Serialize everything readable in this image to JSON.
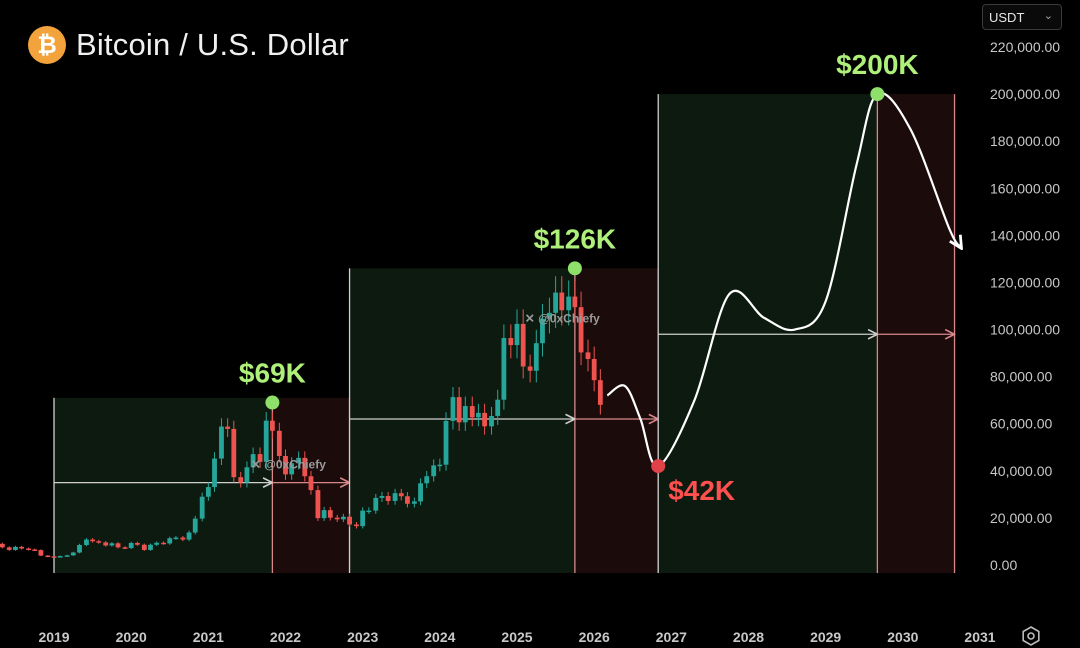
{
  "header": {
    "title": "Bitcoin / U.S. Dollar",
    "icon": "bitcoin-logo-icon",
    "icon_glyph": "₿"
  },
  "currency_selector": {
    "value": "USDT",
    "chevron": "⌄"
  },
  "watermark": "@0xChiefy",
  "colors": {
    "up": "#26a69a",
    "down": "#ef5350",
    "green_zone": "#0d1a0f",
    "red_zone": "#1c0b0b",
    "peak": "#8ee06a",
    "bottom": "#e0424a",
    "label_green": "#aef07a",
    "label_red": "#ff4f4f"
  },
  "chart_data": {
    "type": "candlestick",
    "y_ticks": [
      "220,000.00",
      "200,000.00",
      "180,000.00",
      "160,000.00",
      "140,000.00",
      "120,000.00",
      "100,000.00",
      "80,000.00",
      "60,000.00",
      "40,000.00",
      "20,000.00",
      "0.00"
    ],
    "ylim": [
      0,
      220000
    ],
    "x_ticks": [
      "2019",
      "2020",
      "2021",
      "2022",
      "2023",
      "2024",
      "2025",
      "2026",
      "2027",
      "2028",
      "2029",
      "2030",
      "2031"
    ],
    "xlim": [
      2018.3,
      2031
    ],
    "candles": [
      {
        "t": 2018.33,
        "o": 9000,
        "c": 7500
      },
      {
        "t": 2018.42,
        "o": 7500,
        "c": 6400
      },
      {
        "t": 2018.5,
        "o": 6400,
        "c": 7700
      },
      {
        "t": 2018.58,
        "o": 7700,
        "c": 7000
      },
      {
        "t": 2018.67,
        "o": 7000,
        "c": 6600
      },
      {
        "t": 2018.75,
        "o": 6600,
        "c": 6300
      },
      {
        "t": 2018.83,
        "o": 6300,
        "c": 4000
      },
      {
        "t": 2018.92,
        "o": 4000,
        "c": 3700
      },
      {
        "t": 2019.0,
        "o": 3700,
        "c": 3400
      },
      {
        "t": 2019.08,
        "o": 3400,
        "c": 3800
      },
      {
        "t": 2019.17,
        "o": 3800,
        "c": 4100
      },
      {
        "t": 2019.25,
        "o": 4100,
        "c": 5300
      },
      {
        "t": 2019.33,
        "o": 5300,
        "c": 8500
      },
      {
        "t": 2019.42,
        "o": 8500,
        "c": 10800
      },
      {
        "t": 2019.5,
        "o": 10800,
        "c": 10100
      },
      {
        "t": 2019.58,
        "o": 10100,
        "c": 9600
      },
      {
        "t": 2019.67,
        "o": 9600,
        "c": 8300
      },
      {
        "t": 2019.75,
        "o": 8300,
        "c": 9200
      },
      {
        "t": 2019.83,
        "o": 9200,
        "c": 7500
      },
      {
        "t": 2019.92,
        "o": 7500,
        "c": 7200
      },
      {
        "t": 2020.0,
        "o": 7200,
        "c": 9350
      },
      {
        "t": 2020.08,
        "o": 9350,
        "c": 8600
      },
      {
        "t": 2020.17,
        "o": 8600,
        "c": 6400
      },
      {
        "t": 2020.25,
        "o": 6400,
        "c": 8600
      },
      {
        "t": 2020.33,
        "o": 8600,
        "c": 9450
      },
      {
        "t": 2020.42,
        "o": 9450,
        "c": 9150
      },
      {
        "t": 2020.5,
        "o": 9150,
        "c": 11350
      },
      {
        "t": 2020.58,
        "o": 11350,
        "c": 11650
      },
      {
        "t": 2020.67,
        "o": 11650,
        "c": 10800
      },
      {
        "t": 2020.75,
        "o": 10800,
        "c": 13800
      },
      {
        "t": 2020.83,
        "o": 13800,
        "c": 19700
      },
      {
        "t": 2020.92,
        "o": 19700,
        "c": 29000
      },
      {
        "t": 2021.0,
        "o": 29000,
        "c": 33100
      },
      {
        "t": 2021.08,
        "o": 33100,
        "c": 45200
      },
      {
        "t": 2021.17,
        "o": 45200,
        "c": 58800
      },
      {
        "t": 2021.25,
        "o": 58800,
        "c": 57800
      },
      {
        "t": 2021.33,
        "o": 57800,
        "c": 37300
      },
      {
        "t": 2021.42,
        "o": 37300,
        "c": 35000
      },
      {
        "t": 2021.5,
        "o": 35000,
        "c": 41500
      },
      {
        "t": 2021.58,
        "o": 41500,
        "c": 47100
      },
      {
        "t": 2021.67,
        "o": 47100,
        "c": 43800
      },
      {
        "t": 2021.75,
        "o": 43800,
        "c": 61300
      },
      {
        "t": 2021.83,
        "o": 61300,
        "c": 57000
      },
      {
        "t": 2021.92,
        "o": 57000,
        "c": 46300
      },
      {
        "t": 2022.0,
        "o": 46300,
        "c": 38500
      },
      {
        "t": 2022.08,
        "o": 38500,
        "c": 43200
      },
      {
        "t": 2022.17,
        "o": 43200,
        "c": 45500
      },
      {
        "t": 2022.25,
        "o": 45500,
        "c": 37700
      },
      {
        "t": 2022.33,
        "o": 37700,
        "c": 31800
      },
      {
        "t": 2022.42,
        "o": 31800,
        "c": 19900
      },
      {
        "t": 2022.5,
        "o": 19900,
        "c": 23300
      },
      {
        "t": 2022.58,
        "o": 23300,
        "c": 20100
      },
      {
        "t": 2022.67,
        "o": 20100,
        "c": 19400
      },
      {
        "t": 2022.75,
        "o": 19400,
        "c": 20500
      },
      {
        "t": 2022.83,
        "o": 20500,
        "c": 17200
      },
      {
        "t": 2022.92,
        "o": 17200,
        "c": 16500
      },
      {
        "t": 2023.0,
        "o": 16500,
        "c": 23100
      },
      {
        "t": 2023.08,
        "o": 23100,
        "c": 23100
      },
      {
        "t": 2023.17,
        "o": 23100,
        "c": 28500
      },
      {
        "t": 2023.25,
        "o": 28500,
        "c": 29300
      },
      {
        "t": 2023.33,
        "o": 29300,
        "c": 27200
      },
      {
        "t": 2023.42,
        "o": 27200,
        "c": 30500
      },
      {
        "t": 2023.5,
        "o": 30500,
        "c": 29200
      },
      {
        "t": 2023.58,
        "o": 29200,
        "c": 26000
      },
      {
        "t": 2023.67,
        "o": 26000,
        "c": 27000
      },
      {
        "t": 2023.75,
        "o": 27000,
        "c": 34700
      },
      {
        "t": 2023.83,
        "o": 34700,
        "c": 37700
      },
      {
        "t": 2023.92,
        "o": 37700,
        "c": 42300
      },
      {
        "t": 2024.0,
        "o": 42300,
        "c": 42600
      },
      {
        "t": 2024.08,
        "o": 42600,
        "c": 61200
      },
      {
        "t": 2024.17,
        "o": 61200,
        "c": 71300
      },
      {
        "t": 2024.25,
        "o": 71300,
        "c": 60600
      },
      {
        "t": 2024.33,
        "o": 60600,
        "c": 67500
      },
      {
        "t": 2024.42,
        "o": 67500,
        "c": 62700
      },
      {
        "t": 2024.5,
        "o": 62700,
        "c": 64600
      },
      {
        "t": 2024.58,
        "o": 64600,
        "c": 58900
      },
      {
        "t": 2024.67,
        "o": 58900,
        "c": 63300
      },
      {
        "t": 2024.75,
        "o": 63300,
        "c": 70200
      },
      {
        "t": 2024.83,
        "o": 70200,
        "c": 96400
      },
      {
        "t": 2024.92,
        "o": 96400,
        "c": 93400
      },
      {
        "t": 2025.0,
        "o": 93400,
        "c": 102400
      },
      {
        "t": 2025.08,
        "o": 102400,
        "c": 84300
      },
      {
        "t": 2025.17,
        "o": 84300,
        "c": 82500
      },
      {
        "t": 2025.25,
        "o": 82500,
        "c": 94200
      },
      {
        "t": 2025.33,
        "o": 94200,
        "c": 104600
      },
      {
        "t": 2025.42,
        "o": 104600,
        "c": 107100
      },
      {
        "t": 2025.5,
        "o": 107100,
        "c": 115700
      },
      {
        "t": 2025.58,
        "o": 115700,
        "c": 108200
      },
      {
        "t": 2025.67,
        "o": 108200,
        "c": 114000
      },
      {
        "t": 2025.75,
        "o": 114000,
        "c": 109500
      },
      {
        "t": 2025.83,
        "o": 109500,
        "c": 90300
      },
      {
        "t": 2025.92,
        "o": 90300,
        "c": 87500
      },
      {
        "t": 2026.0,
        "o": 87500,
        "c": 78500
      },
      {
        "t": 2026.08,
        "o": 78500,
        "c": 68000
      }
    ],
    "cycles": [
      {
        "start": 2019.0,
        "peak": 2021.83,
        "end": 2022.83,
        "ref_level": 35000
      },
      {
        "start": 2022.83,
        "peak": 2025.75,
        "end": 2026.83,
        "ref_level": 62000
      },
      {
        "start": 2026.83,
        "peak": 2029.67,
        "end": 2030.67,
        "ref_level": 98000
      }
    ],
    "projection": [
      [
        2026.17,
        72000
      ],
      [
        2026.4,
        76000
      ],
      [
        2026.6,
        62000
      ],
      [
        2026.83,
        42000
      ],
      [
        2027.3,
        70000
      ],
      [
        2027.75,
        115000
      ],
      [
        2028.2,
        105000
      ],
      [
        2028.6,
        100000
      ],
      [
        2029.0,
        112000
      ],
      [
        2029.4,
        170000
      ],
      [
        2029.67,
        200000
      ],
      [
        2030.1,
        185000
      ],
      [
        2030.6,
        143000
      ],
      [
        2030.75,
        135000
      ]
    ],
    "annotations": [
      {
        "label": "$69K",
        "t": 2021.83,
        "v": 69000,
        "kind": "peak"
      },
      {
        "label": "$126K",
        "t": 2025.75,
        "v": 126000,
        "kind": "peak"
      },
      {
        "label": "$42K",
        "t": 2026.83,
        "v": 42000,
        "kind": "bottom"
      },
      {
        "label": "$200K",
        "t": 2029.67,
        "v": 200000,
        "kind": "peak"
      }
    ]
  }
}
